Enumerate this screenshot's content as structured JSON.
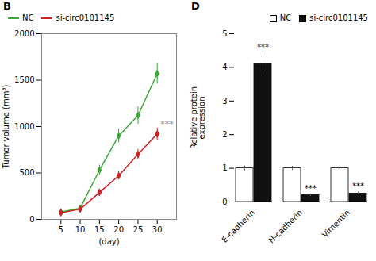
{
  "chart_data": [
    {
      "type": "line",
      "title": "B",
      "xlabel": "(day)",
      "ylabel": "Tumor volume (mm³)",
      "x": [
        5,
        10,
        15,
        20,
        25,
        30
      ],
      "xlim": [
        0,
        35
      ],
      "xticks": [
        5,
        10,
        15,
        20,
        25,
        30
      ],
      "ylim": [
        0,
        2000
      ],
      "yticks": [
        0,
        500,
        1000,
        1500,
        2000
      ],
      "legend": "upper left",
      "series": [
        {
          "name": "NC",
          "color": "#3aaa35",
          "marker": "diamond",
          "values": [
            80,
            120,
            530,
            900,
            1120,
            1570
          ],
          "errors": [
            20,
            25,
            55,
            75,
            95,
            110
          ]
        },
        {
          "name": "si-circ0101145",
          "color": "#cc2222",
          "marker": "diamond",
          "values": [
            70,
            110,
            290,
            470,
            700,
            920
          ],
          "errors": [
            12,
            20,
            35,
            45,
            55,
            65
          ]
        }
      ],
      "annotations": [
        {
          "text": "***",
          "x": 30,
          "y": 920
        }
      ]
    },
    {
      "type": "bar",
      "title": "D",
      "ylabel": "Relative protein\nexpression",
      "categories": [
        "E-cadherin",
        "N-cadherin",
        "Vimentin"
      ],
      "ylim": [
        0,
        5
      ],
      "yticks": [
        0,
        1,
        2,
        3,
        4,
        5
      ],
      "legend": "upper right",
      "series": [
        {
          "name": "NC",
          "color": "white",
          "values": [
            1.0,
            1.0,
            1.0
          ],
          "errors": [
            0.07,
            0.06,
            0.07
          ]
        },
        {
          "name": "si-circ0101145",
          "color": "#111111",
          "values": [
            4.1,
            0.2,
            0.25
          ],
          "errors": [
            0.32,
            0.03,
            0.04
          ]
        }
      ],
      "annotations": [
        {
          "text": "***",
          "category": "E-cadherin",
          "series": "si-circ0101145"
        },
        {
          "text": "***",
          "category": "N-cadherin",
          "series": "si-circ0101145"
        },
        {
          "text": "***",
          "category": "Vimentin",
          "series": "si-circ0101145"
        }
      ]
    }
  ]
}
